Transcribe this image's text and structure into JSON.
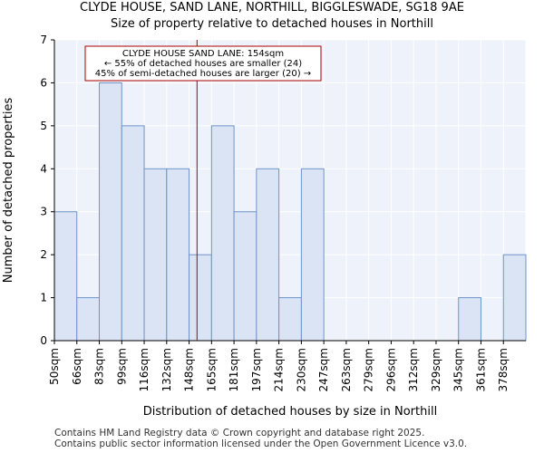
{
  "header": {
    "title": "CLYDE HOUSE, SAND LANE, NORTHILL, BIGGLESWADE, SG18 9AE",
    "subtitle": "Size of property relative to detached houses in Northill"
  },
  "footer": {
    "line1": "Contains HM Land Registry data © Crown copyright and database right 2025.",
    "line2": "Contains public sector information licensed under the Open Government Licence v3.0."
  },
  "colors": {
    "bar_fill": "#dae4f4",
    "bar_stroke": "#6f93c9",
    "grid": "#d6dff0",
    "marker": "#aa0000"
  },
  "chart_data": {
    "type": "bar",
    "title": "CLYDE HOUSE, SAND LANE, NORTHILL, BIGGLESWADE, SG18 9AE",
    "subtitle": "Size of property relative to detached houses in Northill",
    "xlabel": "Distribution of detached houses by size in Northill",
    "ylabel": "Number of detached properties",
    "categories": [
      "50sqm",
      "66sqm",
      "83sqm",
      "99sqm",
      "116sqm",
      "132sqm",
      "148sqm",
      "165sqm",
      "181sqm",
      "197sqm",
      "214sqm",
      "230sqm",
      "247sqm",
      "263sqm",
      "279sqm",
      "296sqm",
      "312sqm",
      "329sqm",
      "345sqm",
      "361sqm",
      "378sqm"
    ],
    "values": [
      3,
      1,
      6,
      5,
      4,
      4,
      2,
      5,
      3,
      4,
      1,
      4,
      0,
      0,
      0,
      0,
      0,
      0,
      1,
      0,
      2
    ],
    "ylim": [
      0,
      7
    ],
    "yticks": [
      0,
      1,
      2,
      3,
      4,
      5,
      6,
      7
    ],
    "grid": true,
    "marker_value": 154,
    "annotation": {
      "line1": "CLYDE HOUSE SAND LANE: 154sqm",
      "line2": "← 55% of detached houses are smaller (24)",
      "line3": "45% of semi-detached houses are larger (20) →"
    }
  }
}
